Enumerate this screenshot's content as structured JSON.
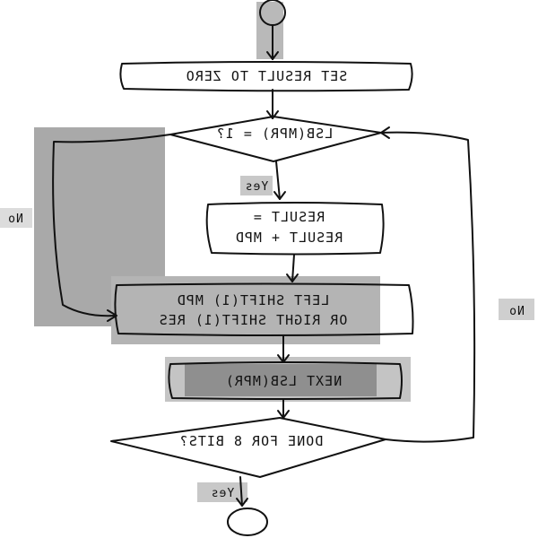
{
  "nodes": {
    "set_result": "SET RESULT TO ZERO",
    "decision_lsb": "LSB(MPR) = 1?",
    "add_line1": "RESULT =",
    "add_line2": "RESULT + MPD",
    "shift_line1": "LEFT SHIFT(1) MPD",
    "shift_line2": "OR RIGHT SHIFT(1) RES",
    "next_lsb": "NEXT LSB(MPR)",
    "decision_done": "DONE FOR 8 BITS?"
  },
  "edges": {
    "yes_1": "Yes",
    "no_left": "No",
    "no_right": "No",
    "yes_2": "Yes"
  }
}
